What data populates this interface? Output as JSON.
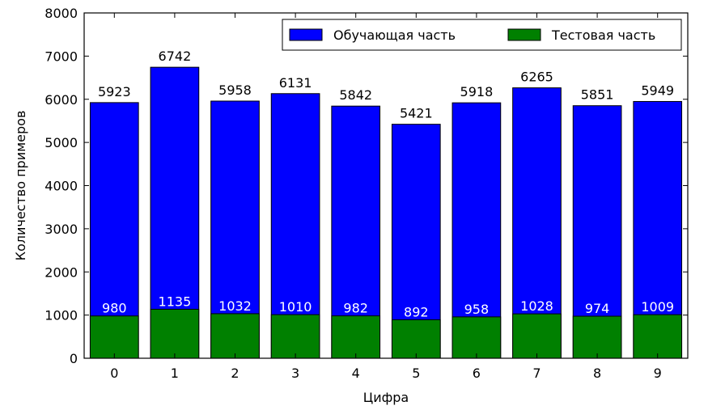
{
  "chart_data": {
    "type": "bar",
    "categories": [
      "0",
      "1",
      "2",
      "3",
      "4",
      "5",
      "6",
      "7",
      "8",
      "9"
    ],
    "series": [
      {
        "name": "Обучающая часть",
        "values": [
          5923,
          6742,
          5958,
          6131,
          5842,
          5421,
          5918,
          6265,
          5851,
          5949
        ],
        "color": "#0000ff"
      },
      {
        "name": "Тестовая часть",
        "values": [
          980,
          1135,
          1032,
          1010,
          982,
          892,
          958,
          1028,
          974,
          1009
        ],
        "color": "#008000"
      }
    ],
    "xlabel": "Цифра",
    "ylabel": "Количество примеров",
    "ylim": [
      0,
      8000
    ],
    "yticks": [
      0,
      1000,
      2000,
      3000,
      4000,
      5000,
      6000,
      7000,
      8000
    ],
    "legend": "top-right",
    "grid": false
  }
}
